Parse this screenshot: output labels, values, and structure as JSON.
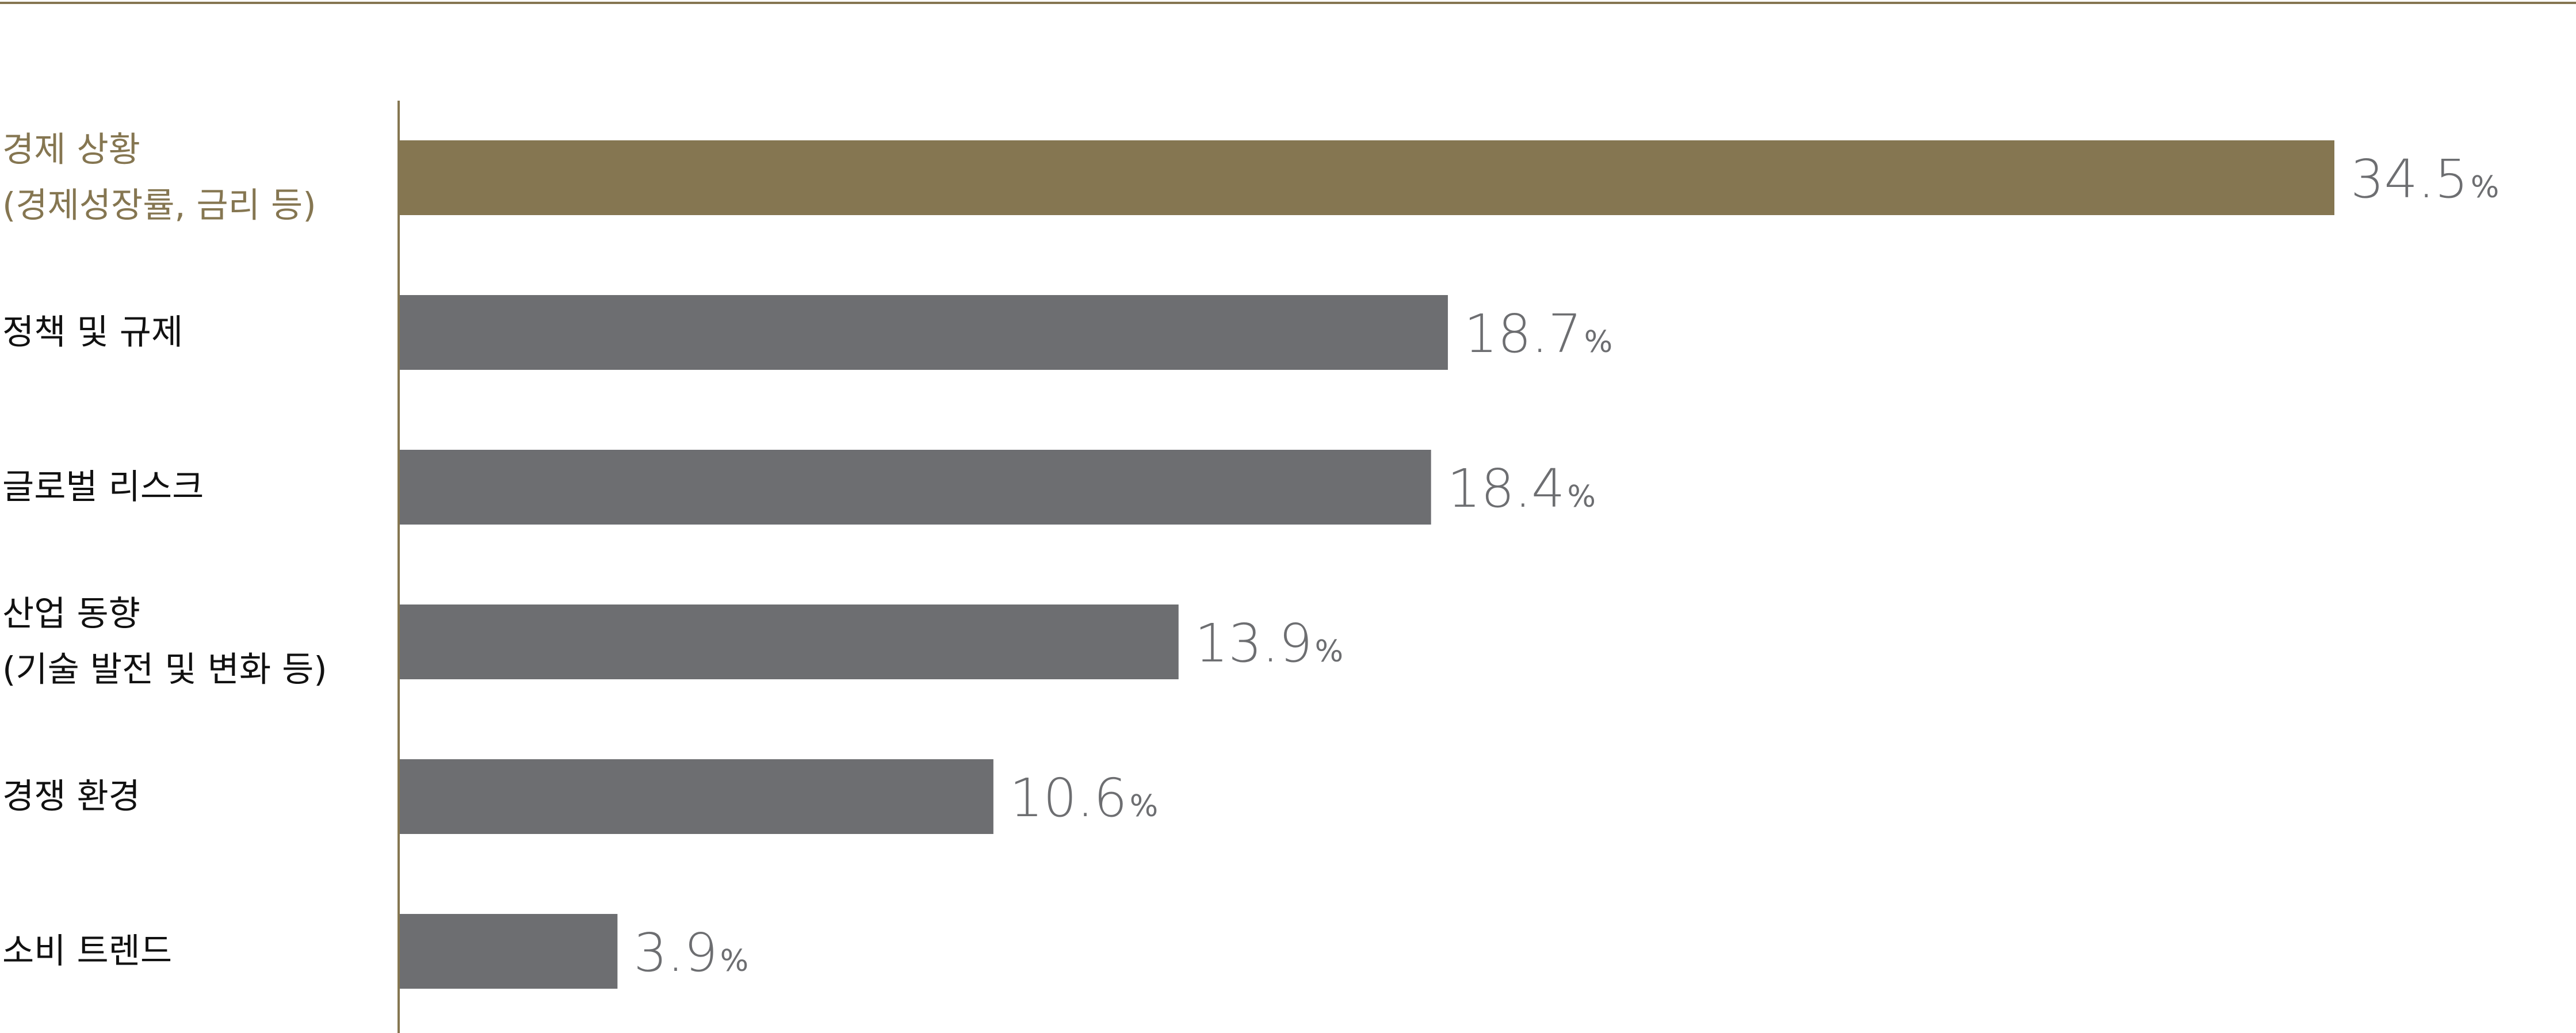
{
  "chart_data": {
    "type": "bar",
    "orientation": "horizontal",
    "categories": [
      [
        "경제 상황",
        "(경제성장률, 금리 등)"
      ],
      [
        "정책 및 규제"
      ],
      [
        "글로벌 리스크"
      ],
      [
        "산업 동향",
        "(기술 발전 및 변화 등)"
      ],
      [
        "경쟁 환경"
      ],
      [
        "소비 트렌드"
      ]
    ],
    "values": [
      34.5,
      18.7,
      18.4,
      13.9,
      10.6,
      3.9
    ],
    "value_unit": "%",
    "highlight_index": 0,
    "xlim": [
      0,
      35
    ],
    "grid": false,
    "legend": "none"
  },
  "colors": {
    "highlight": "#857651",
    "default_bar": "#6d6e71",
    "top_rule": "#857651",
    "axis_line": "#857651",
    "highlight_text": "#857651",
    "label_text": "#111111",
    "value_text": "#6d6e71"
  }
}
